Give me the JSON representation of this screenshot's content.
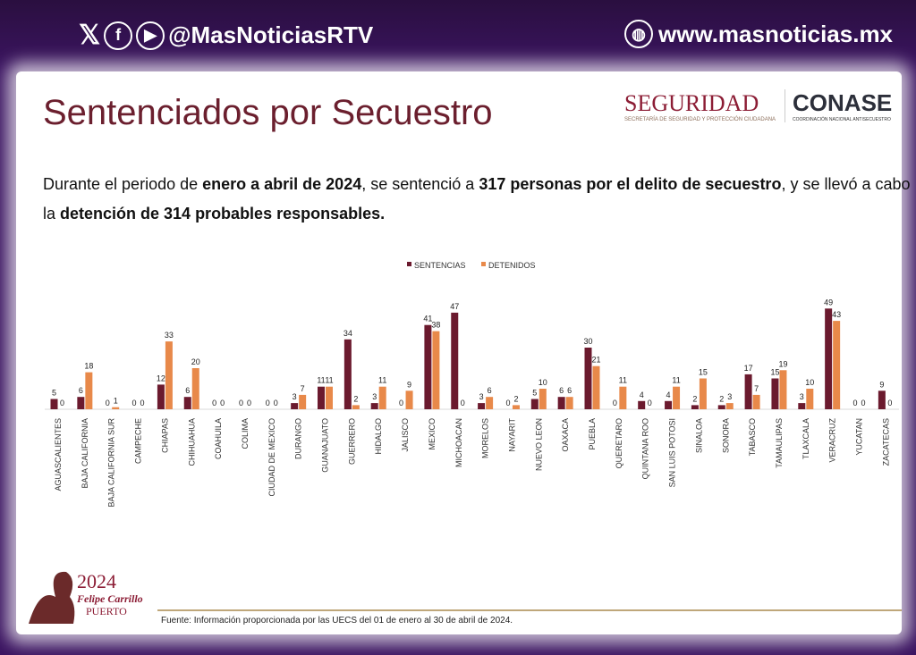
{
  "header": {
    "social_handle": "@MasNoticiasRTV",
    "website": "www.masnoticias.mx",
    "icons": [
      "x-icon",
      "facebook-icon",
      "youtube-icon",
      "globe-icon"
    ]
  },
  "logos": {
    "seguridad": "SEGURIDAD",
    "seguridad_sub": "SECRETARÍA DE SEGURIDAD Y PROTECCIÓN CIUDADANA",
    "conase": "CONASE",
    "conase_sub": "COORDINACIÓN NACIONAL ANTISECUESTRO"
  },
  "title": "Sentenciados por Secuestro",
  "description": {
    "p1": "Durante el periodo de ",
    "b1": "enero a abril de 2024",
    "p2": ", se sentenció a ",
    "b2": "317 personas por el delito de secuestro",
    "p3": ", y se llevó a cabo la ",
    "b3": "detención de 314 probables responsables."
  },
  "chart_data": {
    "type": "bar",
    "legend_placement": "top",
    "categories": [
      "AGUASCALIENTES",
      "BAJA CALIFORNIA",
      "BAJA CALIFORNIA SUR",
      "CAMPECHE",
      "CHIAPAS",
      "CHIHUAHUA",
      "COAHUILA",
      "COLIMA",
      "CIUDAD DE MEXICO",
      "DURANGO",
      "GUANAJUATO",
      "GUERRERO",
      "HIDALGO",
      "JALISCO",
      "MEXICO",
      "MICHOACAN",
      "MORELOS",
      "NAYARIT",
      "NUEVO LEON",
      "OAXACA",
      "PUEBLA",
      "QUERETARO",
      "QUINTANA ROO",
      "SAN LUIS POTOSI",
      "SINALOA",
      "SONORA",
      "TABASCO",
      "TAMAULIPAS",
      "TLAXCALA",
      "VERACRUZ",
      "YUCATAN",
      "ZACATECAS"
    ],
    "series": [
      {
        "name": "SENTENCIAS",
        "color": "#6b1a2e",
        "values": [
          5,
          6,
          0,
          0,
          12,
          6,
          0,
          0,
          0,
          3,
          11,
          34,
          3,
          0,
          41,
          47,
          3,
          0,
          5,
          6,
          30,
          0,
          4,
          4,
          2,
          2,
          17,
          15,
          3,
          49,
          0,
          9
        ]
      },
      {
        "name": "DETENIDOS",
        "color": "#e8894a",
        "values": [
          0,
          18,
          1,
          0,
          33,
          20,
          0,
          0,
          0,
          7,
          11,
          2,
          11,
          9,
          38,
          0,
          6,
          2,
          10,
          6,
          21,
          11,
          0,
          11,
          15,
          3,
          7,
          19,
          10,
          43,
          0,
          0
        ]
      }
    ],
    "ylim": [
      0,
      50
    ],
    "grid": false
  },
  "footer": {
    "source": "Fuente: Información proporcionada por las UECS del 01 de enero al 30 de abril de 2024.",
    "emblem_year": "2024",
    "emblem_name": "Felipe Carrillo",
    "emblem_surname": "PUERTO"
  }
}
